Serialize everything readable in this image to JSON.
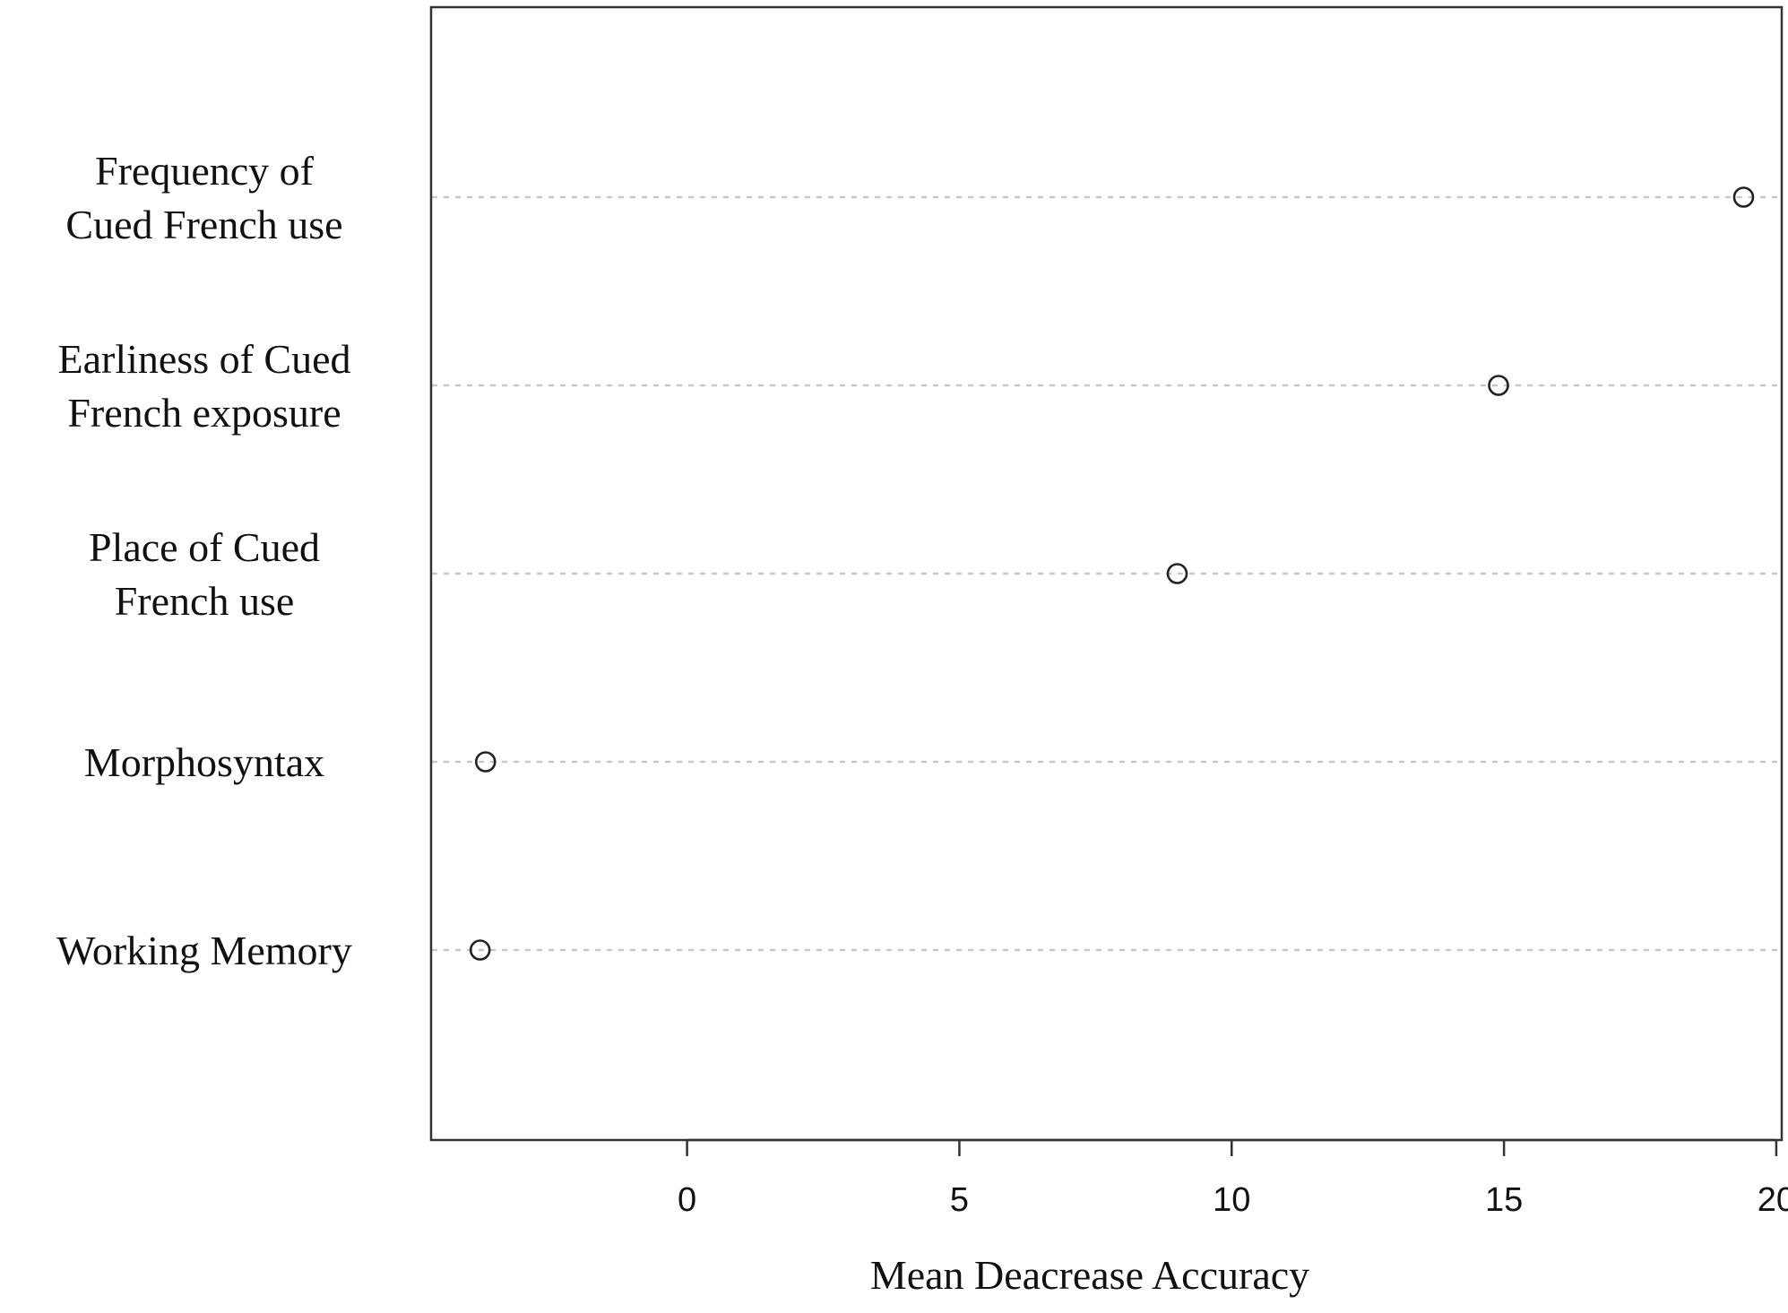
{
  "chart_data": {
    "type": "scatter",
    "style": "dotchart",
    "title": "",
    "xlabel": "Mean Deacrease Accuracy",
    "ylabel": "",
    "xlim": [
      -4.7,
      20.1
    ],
    "xticks": [
      0,
      5,
      10,
      15,
      20
    ],
    "grid": "dotted horizontal lines per category",
    "marker": "open circle",
    "categories": [
      {
        "label_lines": [
          "Frequency of",
          "Cued French use"
        ],
        "value": 19.4
      },
      {
        "label_lines": [
          "Earliness of Cued",
          "French exposure"
        ],
        "value": 14.9
      },
      {
        "label_lines": [
          "Place of Cued",
          "French use"
        ],
        "value": 9.0
      },
      {
        "label_lines": [
          "Morphosyntax"
        ],
        "value": -3.7
      },
      {
        "label_lines": [
          "Working Memory"
        ],
        "value": -3.8
      }
    ],
    "colors": {
      "frame": "#333333",
      "grid": "#c8c8c8",
      "marker": "#222222",
      "text": "#111111"
    }
  }
}
